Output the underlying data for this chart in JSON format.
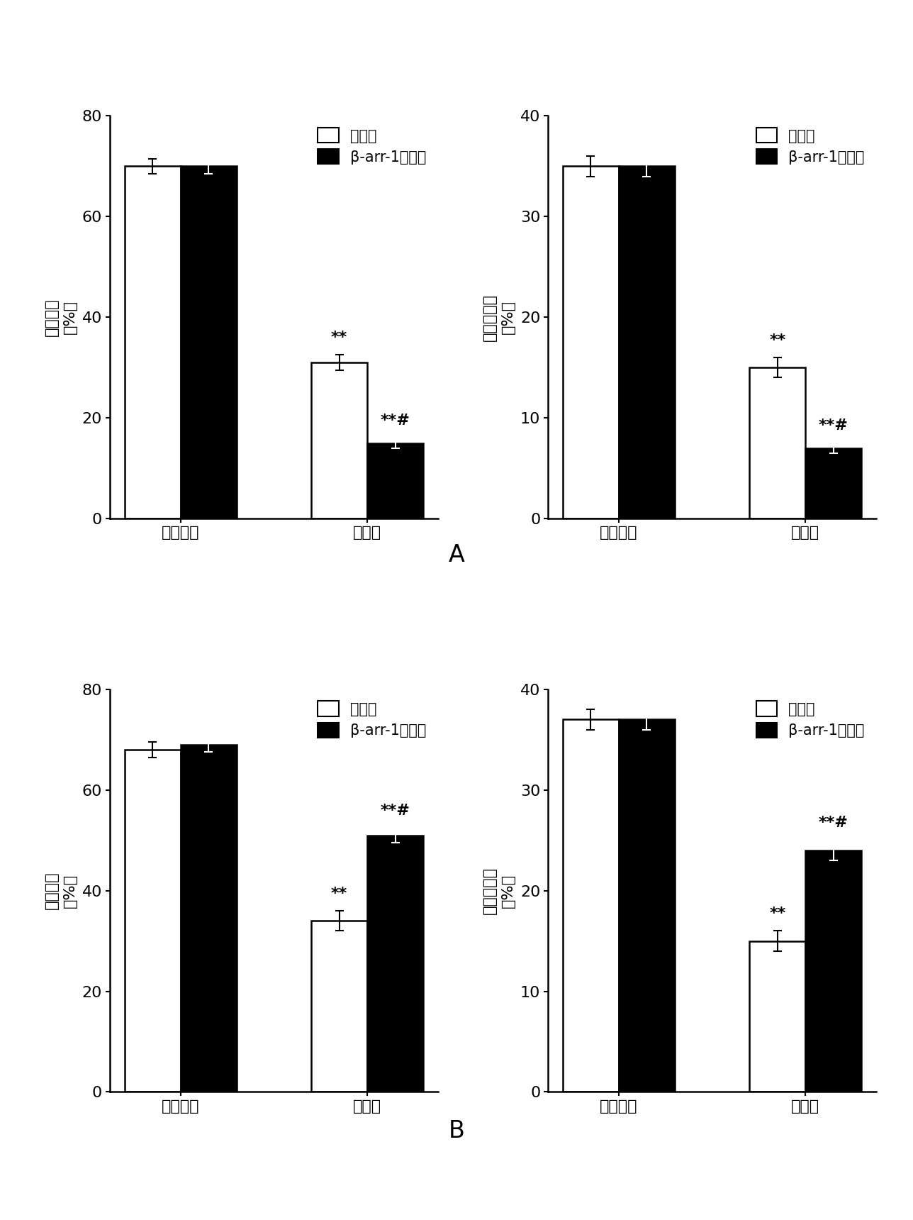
{
  "panel_A": {
    "left": {
      "ylabel_top": "射血分数",
      "ylabel_bot": "（%）",
      "ylim": [
        0,
        80
      ],
      "yticks": [
        0,
        20,
        40,
        60,
        80
      ],
      "groups": [
        "假手术组",
        "心梗组"
      ],
      "wt_values": [
        70,
        31
      ],
      "ko_values": [
        70,
        15
      ],
      "wt_errors": [
        1.5,
        1.5
      ],
      "ko_errors": [
        1.5,
        1.0
      ],
      "legend_label1": "野生型",
      "legend_label2": "β-arr-1敲除型",
      "wt_annots": [
        "",
        "**"
      ],
      "dark_annots": [
        "",
        "**#"
      ]
    },
    "right": {
      "ylabel_top": "短轴缩短率",
      "ylabel_bot": "（%）",
      "ylim": [
        0,
        40
      ],
      "yticks": [
        0,
        10,
        20,
        30,
        40
      ],
      "groups": [
        "假手术组",
        "心梗组"
      ],
      "wt_values": [
        35,
        15
      ],
      "ko_values": [
        35,
        7
      ],
      "wt_errors": [
        1.0,
        1.0
      ],
      "ko_errors": [
        1.0,
        0.5
      ],
      "legend_label1": "野生型",
      "legend_label2": "β-arr-1敲除型",
      "wt_annots": [
        "",
        "**"
      ],
      "dark_annots": [
        "",
        "**#"
      ]
    }
  },
  "panel_B": {
    "left": {
      "ylabel_top": "射血分数",
      "ylabel_bot": "（%）",
      "ylim": [
        0,
        80
      ],
      "yticks": [
        0,
        20,
        40,
        60,
        80
      ],
      "groups": [
        "假手术组",
        "心梗组"
      ],
      "wt_values": [
        68,
        34
      ],
      "tg_values": [
        69,
        51
      ],
      "wt_errors": [
        1.5,
        2.0
      ],
      "tg_errors": [
        1.5,
        1.5
      ],
      "legend_label1": "野生型",
      "legend_label2": "β-arr-1转基因",
      "wt_annots": [
        "",
        "**"
      ],
      "dark_annots": [
        "",
        "**#"
      ]
    },
    "right": {
      "ylabel_top": "短轴缩短率",
      "ylabel_bot": "（%）",
      "ylim": [
        0,
        40
      ],
      "yticks": [
        0,
        10,
        20,
        30,
        40
      ],
      "groups": [
        "假手术组",
        "心梗组"
      ],
      "wt_values": [
        37,
        15
      ],
      "tg_values": [
        37,
        24
      ],
      "wt_errors": [
        1.0,
        1.0
      ],
      "tg_errors": [
        1.0,
        1.0
      ],
      "legend_label1": "野生型",
      "legend_label2": "β-arr-1转基因",
      "wt_annots": [
        "",
        "**"
      ],
      "dark_annots": [
        "",
        "**#"
      ]
    }
  },
  "bar_width": 0.3,
  "bar_color_wt": "white",
  "bar_color_dark": "black",
  "bar_edgecolor": "black",
  "bg_color": "white",
  "label_A": "A",
  "label_B": "B",
  "fontsize_label": 24,
  "fontsize_tick": 16,
  "fontsize_ylabel": 16,
  "fontsize_legend": 15,
  "fontsize_annot": 16,
  "fontsize_group": 16
}
